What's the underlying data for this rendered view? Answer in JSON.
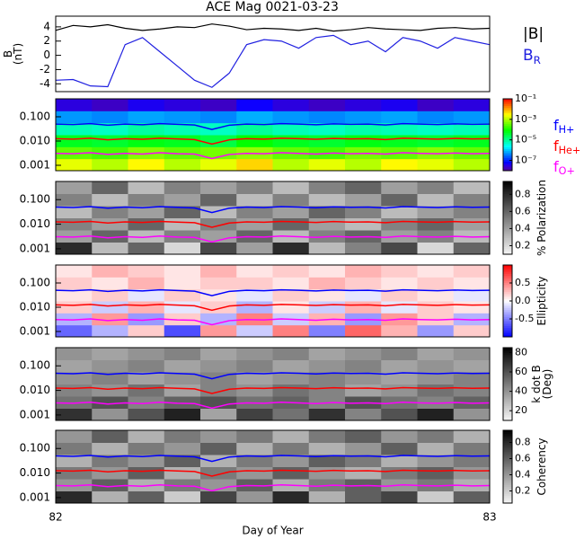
{
  "chart_data": [
    {
      "type": "line",
      "title": "ACE Mag 0021-03-23",
      "ylabel": [
        "B",
        "(nT)"
      ],
      "x": [
        82.0,
        82.04,
        82.08,
        82.12,
        82.16,
        82.2,
        82.24,
        82.28,
        82.32,
        82.36,
        82.4,
        82.44,
        82.48,
        82.52,
        82.56,
        82.6,
        82.64,
        82.68,
        82.72,
        82.76,
        82.8,
        82.84,
        82.88,
        82.92,
        82.96,
        83.0
      ],
      "xlim": [
        82,
        83
      ],
      "ylim": [
        -5.1,
        5.5
      ],
      "yticks": [
        -4,
        -2,
        0,
        2,
        4
      ],
      "series": [
        {
          "name": "|B|",
          "color": "#000000",
          "values": [
            3.5,
            4.2,
            4.0,
            4.3,
            3.8,
            3.5,
            3.7,
            4.0,
            3.9,
            4.4,
            4.1,
            3.6,
            3.8,
            3.7,
            3.5,
            3.8,
            3.4,
            3.6,
            3.9,
            3.7,
            3.6,
            3.5,
            3.8,
            3.9,
            3.7,
            3.8
          ]
        },
        {
          "name": "B",
          "subscript": "R",
          "color": "#2020e0",
          "values": [
            -3.5,
            -3.4,
            -4.3,
            -4.4,
            1.5,
            2.5,
            0.5,
            -1.5,
            -3.5,
            -4.5,
            -2.5,
            1.5,
            2.2,
            2.0,
            1.0,
            2.5,
            2.8,
            1.5,
            2.0,
            0.5,
            2.5,
            2.0,
            1.0,
            2.5,
            2.0,
            1.5
          ]
        }
      ]
    },
    {
      "type": "heatmap",
      "xlim": [
        82,
        83
      ],
      "ylim": [
        0.0006,
        0.55
      ],
      "log_y": true,
      "yticks": [
        {
          "value": 0.001,
          "label": "0.001"
        },
        {
          "value": 0.01,
          "label": "0.010"
        },
        {
          "value": 0.1,
          "label": "0.100"
        }
      ],
      "colormap": "rainbow",
      "log_z": true,
      "zlim": [
        1e-08,
        0.1
      ],
      "zticks": [
        {
          "value": 1e-07,
          "label": "10⁻⁷"
        },
        {
          "value": 1e-05,
          "label": "10⁻⁵"
        },
        {
          "value": 0.001,
          "label": "10⁻³"
        },
        {
          "value": 0.1,
          "label": "10⁻¹"
        }
      ],
      "values": [
        [
          0.002,
          0.001,
          0.003,
          0.001,
          0.002,
          0.005,
          0.001,
          0.002,
          0.001,
          0.003,
          0.002,
          0.001
        ],
        [
          0.0003,
          0.0002,
          0.0005,
          0.0003,
          0.0004,
          0.0006,
          0.0003,
          0.0002,
          0.0004,
          0.0003,
          0.0005,
          0.0003
        ],
        [
          5e-05,
          4e-05,
          6e-05,
          5e-05,
          3e-05,
          8e-05,
          5e-05,
          4e-05,
          6e-05,
          5e-05,
          4e-05,
          5e-05
        ],
        [
          6e-06,
          5e-06,
          8e-06,
          6e-06,
          5e-06,
          9e-06,
          6e-06,
          5e-06,
          7e-06,
          6e-06,
          5e-06,
          6e-06
        ],
        [
          5e-07,
          4e-07,
          6e-07,
          5e-07,
          4e-07,
          7e-07,
          5e-07,
          4e-07,
          5e-07,
          6e-07,
          4e-07,
          5e-07
        ],
        [
          3e-08,
          2e-08,
          4e-08,
          3e-08,
          2e-08,
          5e-08,
          3e-08,
          2e-08,
          3e-08,
          4e-08,
          2e-08,
          3e-08
        ]
      ],
      "series": [
        {
          "name": "f",
          "subscript": "H+",
          "color": "#0000ff",
          "values": [
            0.05,
            0.048,
            0.052,
            0.045,
            0.05,
            0.047,
            0.052,
            0.049,
            0.046,
            0.03,
            0.045,
            0.05,
            0.048,
            0.052,
            0.05,
            0.047,
            0.051,
            0.049,
            0.05,
            0.046,
            0.052,
            0.05,
            0.048,
            0.051,
            0.049,
            0.05
          ]
        },
        {
          "name": "f",
          "subscript": "He+",
          "color": "#ff0000",
          "values": [
            0.0125,
            0.012,
            0.013,
            0.0112,
            0.0125,
            0.0118,
            0.013,
            0.0122,
            0.0115,
            0.0075,
            0.0112,
            0.0125,
            0.012,
            0.013,
            0.0125,
            0.0118,
            0.0128,
            0.0122,
            0.0125,
            0.0115,
            0.013,
            0.0125,
            0.012,
            0.0128,
            0.0122,
            0.0125
          ]
        },
        {
          "name": "f",
          "subscript": "O+",
          "color": "#ff00ff",
          "values": [
            0.0031,
            0.003,
            0.0033,
            0.0028,
            0.0031,
            0.0029,
            0.0033,
            0.003,
            0.0029,
            0.0019,
            0.0028,
            0.0031,
            0.003,
            0.0033,
            0.0031,
            0.0029,
            0.0032,
            0.003,
            0.0031,
            0.0029,
            0.0033,
            0.0031,
            0.003,
            0.0032,
            0.003,
            0.0031
          ]
        }
      ]
    },
    {
      "type": "heatmap",
      "xlim": [
        82,
        83
      ],
      "ylim": [
        0.0006,
        0.55
      ],
      "log_y": true,
      "yticks": [
        {
          "value": 0.001,
          "label": "0.001"
        },
        {
          "value": 0.01,
          "label": "0.010"
        },
        {
          "value": 0.1,
          "label": "0.100"
        }
      ],
      "colormap": "gray",
      "zlim": [
        0.1,
        0.95
      ],
      "zticks": [
        0.2,
        0.4,
        0.6,
        0.8
      ],
      "zlabel": [
        "% Polarization"
      ],
      "values": [
        [
          0.8,
          0.3,
          0.6,
          0.2,
          0.7,
          0.4,
          0.8,
          0.3,
          0.5,
          0.7,
          0.2,
          0.6
        ],
        [
          0.4,
          0.6,
          0.3,
          0.5,
          0.4,
          0.6,
          0.3,
          0.5,
          0.6,
          0.4,
          0.5,
          0.3
        ],
        [
          0.5,
          0.4,
          0.6,
          0.3,
          0.5,
          0.4,
          0.6,
          0.4,
          0.3,
          0.5,
          0.6,
          0.4
        ],
        [
          0.3,
          0.5,
          0.4,
          0.6,
          0.3,
          0.5,
          0.4,
          0.6,
          0.5,
          0.3,
          0.4,
          0.5
        ],
        [
          0.5,
          0.3,
          0.5,
          0.4,
          0.6,
          0.3,
          0.5,
          0.3,
          0.4,
          0.6,
          0.3,
          0.5
        ],
        [
          0.4,
          0.6,
          0.3,
          0.5,
          0.4,
          0.5,
          0.3,
          0.5,
          0.6,
          0.4,
          0.5,
          0.3
        ]
      ]
    },
    {
      "type": "heatmap",
      "xlim": [
        82,
        83
      ],
      "ylim": [
        0.0006,
        0.55
      ],
      "log_y": true,
      "yticks": [
        {
          "value": 0.001,
          "label": "0.001"
        },
        {
          "value": 0.01,
          "label": "0.010"
        },
        {
          "value": 0.1,
          "label": "0.100"
        }
      ],
      "colormap": "bwr",
      "zlim": [
        -1,
        1
      ],
      "zticks": [
        -0.5,
        {
          "value": 0,
          "label": "0.0"
        },
        0.5
      ],
      "zlabel": [
        "Ellipticity"
      ],
      "values": [
        [
          -0.6,
          -0.3,
          0.2,
          -0.7,
          0.4,
          -0.2,
          0.5,
          -0.5,
          0.6,
          0.3,
          -0.4,
          0.2
        ],
        [
          -0.3,
          0.4,
          -0.4,
          0.2,
          -0.3,
          0.5,
          -0.2,
          0.3,
          -0.4,
          0.4,
          0.2,
          -0.3
        ],
        [
          0.2,
          -0.2,
          0.3,
          -0.1,
          0.2,
          -0.3,
          0.1,
          -0.2,
          0.3,
          -0.1,
          0.2,
          0.1
        ],
        [
          0.1,
          0.2,
          -0.1,
          0.2,
          0.1,
          -0.1,
          0.2,
          0.1,
          -0.1,
          0.2,
          0.1,
          -0.1
        ],
        [
          0.2,
          0.1,
          0.3,
          0.1,
          0.2,
          0.2,
          0.1,
          0.3,
          0.2,
          0.1,
          0.2,
          0.1
        ],
        [
          0.1,
          0.3,
          0.2,
          0.1,
          0.3,
          0.1,
          0.2,
          0.1,
          0.3,
          0.2,
          0.1,
          0.2
        ]
      ]
    },
    {
      "type": "heatmap",
      "xlim": [
        82,
        83
      ],
      "ylim": [
        0.0006,
        0.55
      ],
      "log_y": true,
      "yticks": [
        {
          "value": 0.001,
          "label": "0.001"
        },
        {
          "value": 0.01,
          "label": "0.010"
        },
        {
          "value": 0.1,
          "label": "0.100"
        }
      ],
      "colormap": "gray",
      "zlim": [
        10,
        85
      ],
      "zticks": [
        20,
        40,
        60,
        80
      ],
      "zlabel": [
        "k dot B",
        "(Deg)"
      ],
      "values": [
        [
          70,
          40,
          60,
          75,
          35,
          65,
          50,
          70,
          45,
          60,
          75,
          40
        ],
        [
          50,
          60,
          45,
          55,
          60,
          50,
          55,
          45,
          60,
          50,
          45,
          55
        ],
        [
          45,
          40,
          50,
          35,
          45,
          40,
          50,
          45,
          35,
          40,
          50,
          45
        ],
        [
          40,
          45,
          35,
          40,
          45,
          35,
          40,
          45,
          40,
          35,
          40,
          45
        ],
        [
          35,
          40,
          45,
          35,
          40,
          45,
          35,
          40,
          45,
          35,
          40,
          35
        ],
        [
          40,
          35,
          40,
          45,
          35,
          40,
          45,
          35,
          40,
          45,
          35,
          40
        ]
      ]
    },
    {
      "type": "heatmap",
      "xlim": [
        82,
        83
      ],
      "ylim": [
        0.0006,
        0.55
      ],
      "log_y": true,
      "yticks": [
        {
          "value": 0.001,
          "label": "0.001"
        },
        {
          "value": 0.01,
          "label": "0.010"
        },
        {
          "value": 0.1,
          "label": "0.100"
        }
      ],
      "colormap": "gray",
      "zlim": [
        0.05,
        0.95
      ],
      "zticks": [
        0.2,
        0.4,
        0.6,
        0.8
      ],
      "zlabel": [
        "Coherency"
      ],
      "xticks": [
        82,
        83
      ],
      "xlabel": "Day of Year",
      "values": [
        [
          0.8,
          0.3,
          0.6,
          0.2,
          0.7,
          0.4,
          0.8,
          0.3,
          0.6,
          0.7,
          0.2,
          0.6
        ],
        [
          0.4,
          0.6,
          0.3,
          0.5,
          0.4,
          0.6,
          0.3,
          0.5,
          0.6,
          0.4,
          0.5,
          0.3
        ],
        [
          0.5,
          0.4,
          0.6,
          0.3,
          0.5,
          0.4,
          0.6,
          0.4,
          0.3,
          0.5,
          0.6,
          0.4
        ],
        [
          0.3,
          0.5,
          0.4,
          0.6,
          0.3,
          0.5,
          0.4,
          0.6,
          0.5,
          0.3,
          0.4,
          0.5
        ],
        [
          0.5,
          0.3,
          0.5,
          0.4,
          0.6,
          0.3,
          0.5,
          0.3,
          0.4,
          0.6,
          0.3,
          0.5
        ],
        [
          0.4,
          0.6,
          0.3,
          0.5,
          0.4,
          0.5,
          0.3,
          0.5,
          0.6,
          0.4,
          0.5,
          0.3
        ]
      ]
    }
  ]
}
